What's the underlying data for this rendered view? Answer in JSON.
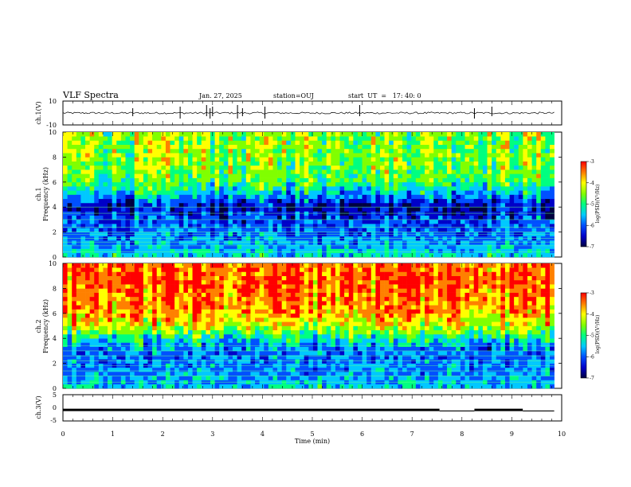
{
  "header": {
    "title": "VLF Spectra",
    "date": "Jan. 27, 2025",
    "station": "station=OUJ",
    "start": "start  UT  =   17: 40: 0"
  },
  "colors": {
    "spectrogram_scale": [
      "#000040",
      "#0000c8",
      "#0050ff",
      "#00c8ff",
      "#00ff80",
      "#80ff00",
      "#ffff00",
      "#ff8000",
      "#ff0000"
    ],
    "trace": "#000000",
    "axis": "#000000"
  },
  "chart_data": [
    {
      "type": "line",
      "panel": "ch1-waveform",
      "ylabel": "ch.1(V)",
      "ylim": [
        -10,
        10
      ],
      "yticks": [
        "10",
        "-10"
      ],
      "x": [
        0,
        10
      ],
      "description_level": "noise around 0 V with sparse spikes",
      "baseline": 0,
      "spikes_x": [
        1.4,
        2.35,
        2.88,
        2.95,
        3.0,
        3.5,
        3.6,
        4.05,
        5.95,
        8.25,
        8.6
      ]
    },
    {
      "type": "heatmap",
      "panel": "ch1-spectrogram",
      "ylabel_top": "ch.1",
      "ylabel": "Frequency (kHz)",
      "ylim": [
        0,
        10
      ],
      "yticks": [
        "0",
        "2",
        "4",
        "6",
        "8",
        "10"
      ],
      "xlim": [
        0,
        10
      ],
      "colorbar": {
        "label": "log(PSD)(V²/Hz)",
        "range": [
          -7,
          -3
        ],
        "ticks": [
          "-3",
          "-4",
          "-5",
          "-6",
          "-7"
        ]
      },
      "profile_khz": [
        0,
        1,
        2,
        3,
        4,
        5,
        6,
        7,
        8,
        9,
        10
      ],
      "profile_level": [
        -5.2,
        -5.6,
        -5.8,
        -6.0,
        -6.4,
        -5.5,
        -4.8,
        -4.6,
        -4.5,
        -4.5,
        -4.5
      ],
      "hum_lines_khz": [
        0.4,
        0.9,
        1.2,
        1.5,
        1.8,
        2.0,
        2.4,
        3.0,
        3.5,
        4.0
      ]
    },
    {
      "type": "heatmap",
      "panel": "ch2-spectrogram",
      "ylabel_top": "ch.2",
      "ylabel": "Frequency (kHz)",
      "ylim": [
        0,
        10
      ],
      "yticks": [
        "0",
        "2",
        "4",
        "6",
        "8",
        "10"
      ],
      "xlim": [
        0,
        10
      ],
      "colorbar": {
        "label": "log(PSD)(V²/Hz)",
        "range": [
          -7,
          -3
        ],
        "ticks": [
          "-3",
          "-4",
          "-5",
          "-6",
          "-7"
        ]
      },
      "profile_khz": [
        0,
        1,
        2,
        3,
        4,
        5,
        6,
        7,
        8,
        9,
        10
      ],
      "profile_level": [
        -5.3,
        -5.6,
        -5.7,
        -5.8,
        -5.2,
        -4.2,
        -3.8,
        -3.6,
        -3.5,
        -3.5,
        -3.5
      ],
      "hum_lines_khz": [
        0.5,
        1.0,
        1.4,
        1.8,
        2.2,
        2.6,
        3.0,
        3.4
      ]
    },
    {
      "type": "line",
      "panel": "ch3-waveform",
      "ylabel": "ch.3(V)",
      "ylim": [
        -5,
        5
      ],
      "yticks": [
        "5",
        "0",
        "-5"
      ],
      "segments": [
        {
          "x": [
            0,
            7.55
          ],
          "y": [
            -0.8,
            -0.8
          ]
        },
        {
          "x": [
            7.55,
            8.25
          ],
          "y": [
            -1.2,
            -1.2
          ]
        },
        {
          "x": [
            8.25,
            9.22
          ],
          "y": [
            -0.8,
            -0.8
          ]
        },
        {
          "x": [
            9.22,
            9.85
          ],
          "y": [
            -1.2,
            -1.2
          ]
        }
      ]
    }
  ],
  "xaxis": {
    "label": "Time (min)",
    "ticks": [
      "0",
      "1",
      "2",
      "3",
      "4",
      "5",
      "6",
      "7",
      "8",
      "9",
      "10"
    ]
  }
}
